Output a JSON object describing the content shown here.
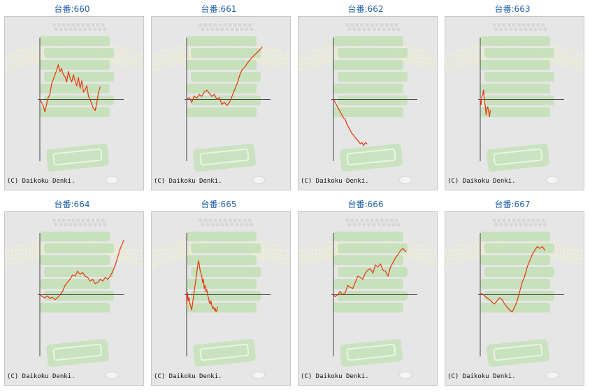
{
  "colors": {
    "line": "#e8360a",
    "axis": "#444444",
    "title": "#2060a8",
    "panel_bg": "#e6e6e6",
    "border": "#c8c8c8",
    "bg_art_green": "#c4e0b8",
    "bg_art_rays": "#f2f2c6",
    "bg_art_pachi": "#d8d8d8"
  },
  "copyright": "(C) Daikoku Denki.",
  "chart_data": [
    {
      "type": "line",
      "title": "台番:660",
      "x_range": [
        0,
        100
      ],
      "y_range": [
        -100,
        100
      ],
      "grid": false,
      "x": [
        0,
        2,
        4,
        6,
        8,
        10,
        12,
        14,
        16,
        18,
        20,
        22,
        24,
        26,
        28,
        30,
        32,
        34,
        36,
        38,
        40,
        42,
        44,
        46,
        48,
        50,
        52,
        54,
        56,
        58,
        60,
        62,
        64,
        66,
        68,
        70,
        72
      ],
      "y": [
        0,
        -5,
        -10,
        -20,
        -8,
        3,
        8,
        25,
        32,
        40,
        47,
        56,
        45,
        50,
        40,
        37,
        28,
        45,
        35,
        28,
        40,
        30,
        22,
        35,
        18,
        30,
        12,
        15,
        22,
        5,
        0,
        -8,
        -15,
        -18,
        -5,
        12,
        20
      ]
    },
    {
      "type": "line",
      "title": "台番:661",
      "x_range": [
        0,
        100
      ],
      "y_range": [
        -100,
        100
      ],
      "grid": false,
      "x": [
        0,
        3,
        6,
        9,
        12,
        15,
        18,
        21,
        24,
        27,
        30,
        33,
        36,
        39,
        42,
        45,
        48,
        51,
        54,
        57,
        60,
        63,
        66,
        69,
        72,
        75,
        78,
        81,
        84,
        87,
        90
      ],
      "y": [
        0,
        3,
        -5,
        5,
        2,
        8,
        5,
        12,
        15,
        10,
        5,
        8,
        0,
        3,
        -8,
        -5,
        -10,
        -5,
        5,
        15,
        25,
        38,
        48,
        52,
        58,
        63,
        68,
        72,
        76,
        80,
        85
      ]
    },
    {
      "type": "line",
      "title": "台番:662",
      "x_range": [
        0,
        100
      ],
      "y_range": [
        -100,
        100
      ],
      "grid": false,
      "x": [
        0,
        2,
        4,
        6,
        8,
        10,
        12,
        14,
        16,
        18,
        20,
        22,
        24,
        26,
        28,
        30,
        32,
        34,
        36,
        38,
        40
      ],
      "y": [
        0,
        -5,
        -10,
        -15,
        -20,
        -25,
        -30,
        -32,
        -40,
        -45,
        -50,
        -55,
        -58,
        -62,
        -65,
        -68,
        -72,
        -70,
        -75,
        -70,
        -72
      ]
    },
    {
      "type": "line",
      "title": "台番:663",
      "x_range": [
        0,
        100
      ],
      "y_range": [
        -100,
        100
      ],
      "grid": false,
      "x": [
        0,
        1,
        2,
        3,
        4,
        5,
        6,
        7,
        8,
        9,
        10,
        11,
        12
      ],
      "y": [
        0,
        -8,
        5,
        8,
        15,
        -5,
        -10,
        -25,
        -15,
        -12,
        -20,
        -28,
        -18
      ]
    },
    {
      "type": "line",
      "title": "台番:664",
      "x_range": [
        0,
        100
      ],
      "y_range": [
        -100,
        100
      ],
      "grid": false,
      "x": [
        0,
        3,
        6,
        9,
        12,
        15,
        18,
        21,
        24,
        27,
        30,
        33,
        36,
        39,
        42,
        45,
        48,
        51,
        54,
        57,
        60,
        63,
        66,
        69,
        72,
        75,
        78,
        81,
        84,
        87,
        90,
        93,
        96,
        100
      ],
      "y": [
        0,
        -3,
        -5,
        -2,
        -6,
        -4,
        -8,
        -5,
        0,
        5,
        15,
        20,
        25,
        32,
        30,
        38,
        33,
        36,
        30,
        28,
        22,
        25,
        18,
        20,
        25,
        22,
        28,
        25,
        30,
        38,
        48,
        62,
        75,
        88
      ]
    },
    {
      "type": "line",
      "title": "台番:665",
      "x_range": [
        0,
        100
      ],
      "y_range": [
        -100,
        100
      ],
      "grid": false,
      "x": [
        0,
        1,
        2,
        3,
        4,
        5,
        6,
        7,
        8,
        9,
        10,
        11,
        12,
        13,
        14,
        15,
        16,
        17,
        18,
        19,
        20,
        21,
        22,
        23,
        24,
        25,
        26,
        27,
        28,
        29,
        30,
        31,
        32,
        33,
        34,
        35,
        36,
        37
      ],
      "y": [
        -20,
        3,
        -10,
        -5,
        -15,
        -20,
        -25,
        -15,
        -5,
        5,
        15,
        25,
        35,
        45,
        55,
        50,
        40,
        35,
        30,
        20,
        25,
        10,
        15,
        5,
        8,
        0,
        -5,
        -12,
        -15,
        -10,
        -18,
        -22,
        -20,
        -25,
        -22,
        -28,
        -25,
        -20
      ]
    },
    {
      "type": "line",
      "title": "台番:666",
      "x_range": [
        0,
        100
      ],
      "y_range": [
        -100,
        100
      ],
      "grid": false,
      "x": [
        0,
        2,
        5,
        8,
        11,
        14,
        17,
        20,
        23,
        26,
        29,
        32,
        35,
        38,
        41,
        44,
        47,
        50,
        53,
        56,
        59,
        62,
        65,
        68,
        71,
        74,
        77,
        80,
        83,
        86
      ],
      "y": [
        0,
        -3,
        0,
        5,
        0,
        3,
        15,
        12,
        10,
        20,
        30,
        28,
        25,
        35,
        40,
        42,
        35,
        48,
        45,
        50,
        40,
        38,
        30,
        45,
        52,
        60,
        65,
        72,
        75,
        70
      ]
    },
    {
      "type": "line",
      "title": "台番:667",
      "x_range": [
        0,
        100
      ],
      "y_range": [
        -100,
        100
      ],
      "grid": false,
      "x": [
        0,
        2,
        5,
        8,
        11,
        14,
        17,
        20,
        23,
        26,
        29,
        32,
        35,
        38,
        41,
        44,
        47,
        50,
        53,
        56,
        59,
        62,
        65,
        68,
        71,
        74,
        77
      ],
      "y": [
        0,
        2,
        -2,
        -5,
        -8,
        -12,
        -15,
        -10,
        -5,
        -8,
        -15,
        -20,
        -25,
        -28,
        -20,
        -10,
        5,
        20,
        30,
        45,
        55,
        65,
        72,
        78,
        75,
        78,
        72
      ]
    }
  ]
}
